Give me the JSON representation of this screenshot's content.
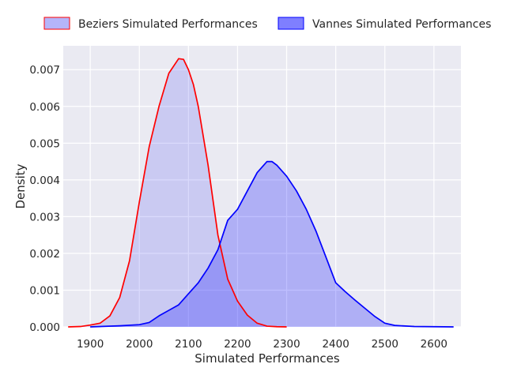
{
  "chart_data": {
    "type": "area",
    "title": "",
    "xlabel": "Simulated Performances",
    "ylabel": "Density",
    "xlim": [
      1845,
      2655
    ],
    "ylim": [
      0,
      0.00765
    ],
    "x_ticks": [
      1900,
      2000,
      2100,
      2200,
      2300,
      2400,
      2500,
      2600
    ],
    "x_tick_labels": [
      "1900",
      "2000",
      "2100",
      "2200",
      "2300",
      "2400",
      "2500",
      "2600"
    ],
    "y_ticks": [
      0,
      0.001,
      0.002,
      0.003,
      0.004,
      0.005,
      0.006,
      0.007
    ],
    "y_tick_labels": [
      "0.000",
      "0.001",
      "0.002",
      "0.003",
      "0.004",
      "0.005",
      "0.006",
      "0.007"
    ],
    "grid": true,
    "legend_position": "top-center",
    "background_color": "#eaeaf2",
    "series": [
      {
        "name": "Beziers Simulated Performances",
        "line_color": "#ff0000",
        "fill_color": "#6b6bf5",
        "fill_alpha": 0.5,
        "x": [
          1855,
          1880,
          1900,
          1920,
          1940,
          1960,
          1980,
          2000,
          2020,
          2040,
          2060,
          2080,
          2090,
          2100,
          2110,
          2120,
          2140,
          2160,
          2180,
          2200,
          2220,
          2240,
          2260,
          2280,
          2300
        ],
        "y": [
          0,
          1e-05,
          5e-05,
          0.0001,
          0.0003,
          0.0008,
          0.0018,
          0.0034,
          0.0049,
          0.006,
          0.0069,
          0.0073,
          0.00728,
          0.007,
          0.0066,
          0.006,
          0.0044,
          0.0025,
          0.0013,
          0.0007,
          0.00032,
          0.0001,
          2e-05,
          5e-06,
          0
        ]
      },
      {
        "name": "Vannes Simulated Performances",
        "line_color": "#0000ff",
        "fill_color": "#0000ff",
        "fill_alpha": 0.5,
        "x": [
          1900,
          1960,
          2000,
          2020,
          2040,
          2060,
          2080,
          2100,
          2120,
          2140,
          2160,
          2180,
          2200,
          2220,
          2240,
          2260,
          2270,
          2280,
          2300,
          2320,
          2340,
          2360,
          2380,
          2400,
          2420,
          2440,
          2460,
          2480,
          2500,
          2520,
          2560,
          2640
        ],
        "y": [
          0,
          3e-05,
          6e-05,
          0.00012,
          0.0003,
          0.00045,
          0.0006,
          0.0009,
          0.0012,
          0.0016,
          0.0021,
          0.0029,
          0.0032,
          0.0037,
          0.0042,
          0.0045,
          0.0045,
          0.0044,
          0.0041,
          0.0037,
          0.0032,
          0.0026,
          0.0019,
          0.0012,
          0.00095,
          0.00072,
          0.0005,
          0.00028,
          0.0001,
          4e-05,
          1e-05,
          0
        ]
      }
    ]
  }
}
